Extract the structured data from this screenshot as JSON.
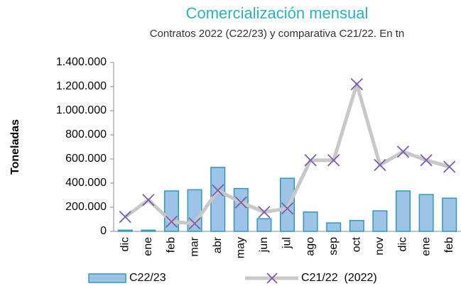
{
  "chart_data": {
    "type": "bar_line",
    "title": "Comercialización mensual",
    "subtitle": "Contratos 2022 (C22/23) y comparativa C21/22. En tn",
    "y_label": "Toneladas",
    "categories": [
      "dic",
      "ene",
      "feb",
      "mar",
      "abr",
      "may",
      "jun",
      "jul",
      "ago",
      "sep",
      "oct",
      "nov",
      "dic",
      "ene",
      "feb"
    ],
    "series": [
      {
        "name": "C22/23",
        "type": "bar",
        "color": "#9dc3e6",
        "border": "#2e9ab8",
        "values": [
          10000,
          10000,
          335000,
          345000,
          530000,
          355000,
          105000,
          440000,
          160000,
          70000,
          90000,
          170000,
          335000,
          305000,
          275000
        ]
      },
      {
        "name": "C21/22  (2022)",
        "type": "line",
        "color": "#c8c8c8",
        "marker_color": "#7b5ea7",
        "values": [
          120000,
          260000,
          80000,
          65000,
          340000,
          240000,
          160000,
          190000,
          590000,
          590000,
          1220000,
          550000,
          660000,
          590000,
          535000
        ]
      }
    ],
    "ylim": [
      0,
      1400000
    ],
    "yticks": [
      0,
      {
        "value": 200000,
        "label": "200.000"
      },
      {
        "value": 400000,
        "label": "400.000"
      },
      {
        "value": 600000,
        "label": "600.000"
      },
      {
        "value": 800000,
        "label": "800.000"
      },
      {
        "value": 1000000,
        "label": "1.000.000"
      },
      {
        "value": 1200000,
        "label": "1.200.000"
      },
      {
        "value": 1400000,
        "label": "1.400.000"
      }
    ],
    "grid": false,
    "legend": "bottom"
  }
}
